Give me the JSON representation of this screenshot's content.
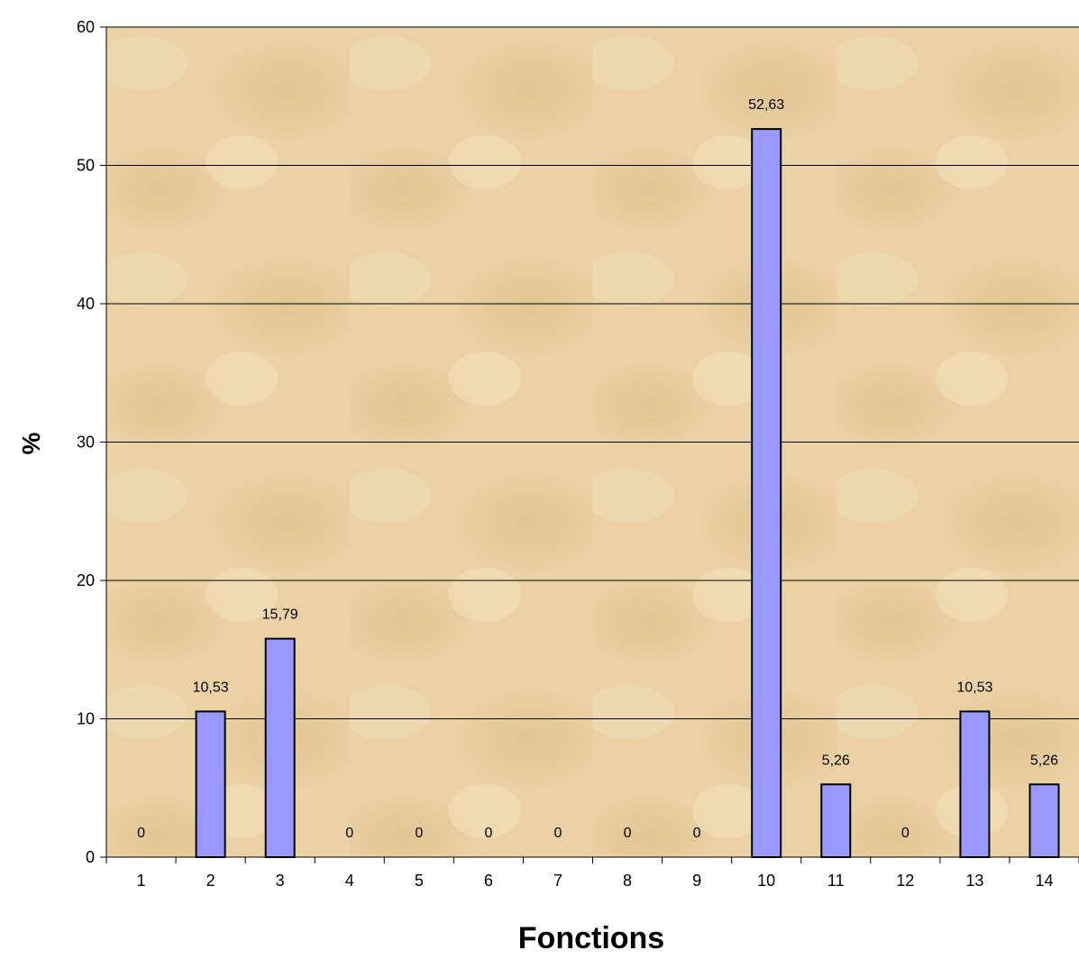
{
  "chart_data": {
    "type": "bar",
    "categories": [
      "1",
      "2",
      "3",
      "4",
      "5",
      "6",
      "7",
      "8",
      "9",
      "10",
      "11",
      "12",
      "13",
      "14"
    ],
    "values": [
      0,
      10.53,
      15.79,
      0,
      0,
      0,
      0,
      0,
      0,
      52.63,
      5.26,
      0,
      10.53,
      5.26
    ],
    "data_labels": [
      "0",
      "10,53",
      "15,79",
      "0",
      "0",
      "0",
      "0",
      "0",
      "0",
      "52,63",
      "5,26",
      "0",
      "10,53",
      "5,26"
    ],
    "y_ticks": [
      0,
      10,
      20,
      30,
      40,
      50,
      60
    ],
    "title": "",
    "xlabel": "Fonctions",
    "ylabel": "%",
    "ylim": [
      0,
      60
    ],
    "grid": true,
    "legend": "none",
    "colors": {
      "bar_fill": "#9999FF",
      "bar_stroke": "#000000",
      "plot_background": "#EAD2A4",
      "gridline": "#000000"
    }
  }
}
